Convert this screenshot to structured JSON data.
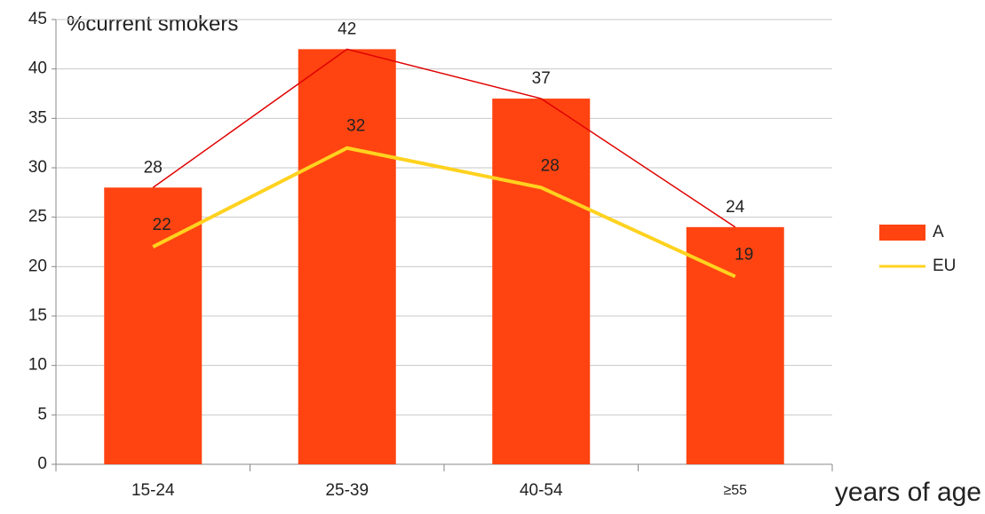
{
  "chart_data": {
    "type": "bar",
    "y_label": "%current smokers",
    "x_label": "years of age",
    "categories": [
      "15-24",
      "25-39",
      "40-54",
      "≥55"
    ],
    "series": [
      {
        "name": "A",
        "type": "bar",
        "color": "#ff4411",
        "values": [
          28,
          42,
          37,
          24
        ],
        "top_line_color": "#e00000"
      },
      {
        "name": "EU",
        "type": "line",
        "color": "#ffd21f",
        "values": [
          22,
          32,
          28,
          19
        ]
      }
    ],
    "ylim": [
      0,
      45
    ],
    "yticks": [
      0,
      5,
      10,
      15,
      20,
      25,
      30,
      35,
      40,
      45
    ],
    "grid": true,
    "legend": "right"
  }
}
